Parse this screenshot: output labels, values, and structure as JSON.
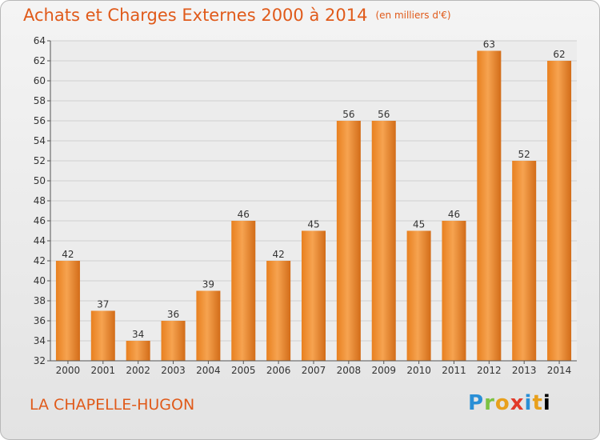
{
  "header": {
    "title": "Achats et Charges Externes 2000 à 2014",
    "unit_note": "(en milliers d'€)"
  },
  "footer": {
    "location": "LA CHAPELLE-HUGON",
    "logo_text": "Proxiti"
  },
  "colors": {
    "accent": "#e05a1a",
    "bar_light": "#f5a04e",
    "bar_dark": "#d9731f"
  },
  "chart_data": {
    "type": "bar",
    "title": "Achats et Charges Externes 2000 à 2014",
    "subtitle": "(en milliers d'€)",
    "xlabel": "",
    "ylabel": "",
    "categories": [
      "2000",
      "2001",
      "2002",
      "2003",
      "2004",
      "2005",
      "2006",
      "2007",
      "2008",
      "2009",
      "2010",
      "2011",
      "2012",
      "2013",
      "2014"
    ],
    "values": [
      42,
      37,
      34,
      36,
      39,
      46,
      42,
      45,
      56,
      56,
      45,
      46,
      63,
      52,
      62
    ],
    "ylim": [
      32,
      64
    ],
    "yticks": [
      32,
      34,
      36,
      38,
      40,
      42,
      44,
      46,
      48,
      50,
      52,
      54,
      56,
      58,
      60,
      62,
      64
    ],
    "grid": true,
    "data_labels": true
  }
}
